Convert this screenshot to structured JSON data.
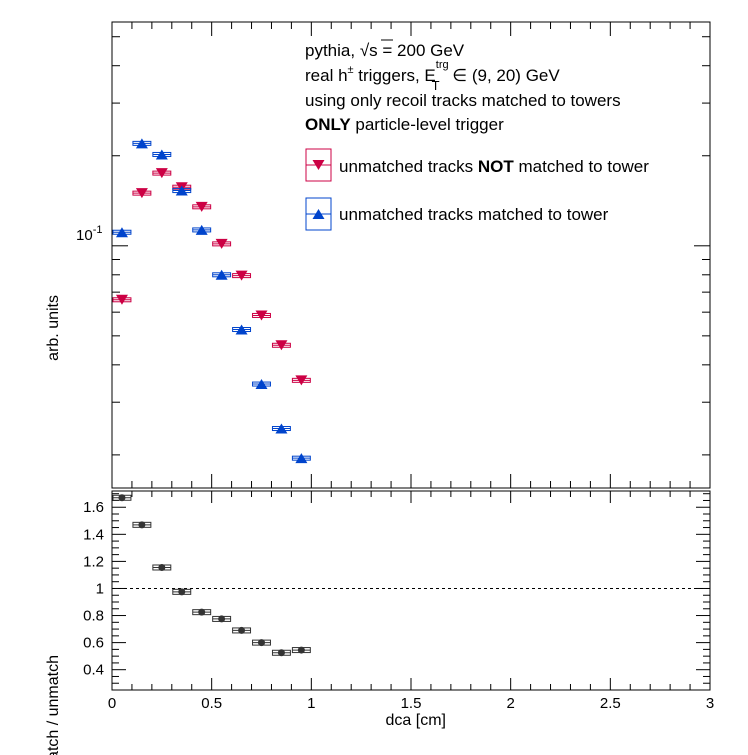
{
  "chart_data": [
    {
      "type": "scatter",
      "panel": "top",
      "ylabel": "arb. units",
      "y_scale": "log",
      "ylim": [
        0.0155,
        0.56
      ],
      "xlim": [
        0,
        3
      ],
      "y_tick_label": "10",
      "y_tick_exponent": "-1",
      "annotation": {
        "line1": {
          "a": "pythia, ",
          "sqrt": "s",
          "b": " = 200 GeV"
        },
        "line2": {
          "a": "real h",
          "sup": "±",
          "b": " triggers, E",
          "sup2": "trg",
          "sub2": "T",
          "c": " ∈ (9, 20) GeV"
        },
        "line3": "using only recoil tracks matched to towers",
        "line4": {
          "bold": "ONLY",
          "rest": " particle-level trigger"
        }
      },
      "legend": {
        "placement": "top-right",
        "entries": [
          {
            "pre": "unmatched tracks ",
            "bold": "NOT",
            "post": " matched to tower"
          },
          {
            "pre": "unmatched tracks matched to tower",
            "bold": "",
            "post": ""
          }
        ]
      },
      "series": [
        {
          "color": "#cc0044",
          "marker": "triangle-down",
          "x": [
            0.05,
            0.15,
            0.25,
            0.35,
            0.45,
            0.55,
            0.65,
            0.75,
            0.85,
            0.95
          ],
          "y": [
            0.066,
            0.15,
            0.175,
            0.157,
            0.135,
            0.1015,
            0.0795,
            0.0585,
            0.0465,
            0.0355
          ]
        },
        {
          "color": "#0044cc",
          "marker": "triangle-up",
          "x": [
            0.05,
            0.15,
            0.25,
            0.35,
            0.45,
            0.55,
            0.65,
            0.75,
            0.85,
            0.95
          ],
          "y": [
            0.111,
            0.22,
            0.202,
            0.153,
            0.113,
            0.08,
            0.0525,
            0.0345,
            0.0245,
            0.0195
          ]
        }
      ]
    },
    {
      "type": "scatter",
      "panel": "bottom",
      "xlabel": "dca [cm]",
      "ylabel": "match / unmatch",
      "ylim": [
        0.25,
        1.72
      ],
      "xlim": [
        0,
        3
      ],
      "x_ticks": [
        "0",
        "0.5",
        "1",
        "1.5",
        "2",
        "2.5",
        "3"
      ],
      "y_ticks": [
        "0.4",
        "0.6",
        "0.8",
        "1",
        "1.2",
        "1.4",
        "1.6"
      ],
      "reference_line": 1.0,
      "series": [
        {
          "color": "#333333",
          "marker": "circle",
          "x": [
            0.05,
            0.15,
            0.25,
            0.35,
            0.45,
            0.55,
            0.65,
            0.75,
            0.85,
            0.95
          ],
          "y": [
            1.67,
            1.47,
            1.155,
            0.975,
            0.825,
            0.775,
            0.69,
            0.6,
            0.525,
            0.545
          ]
        }
      ]
    }
  ]
}
